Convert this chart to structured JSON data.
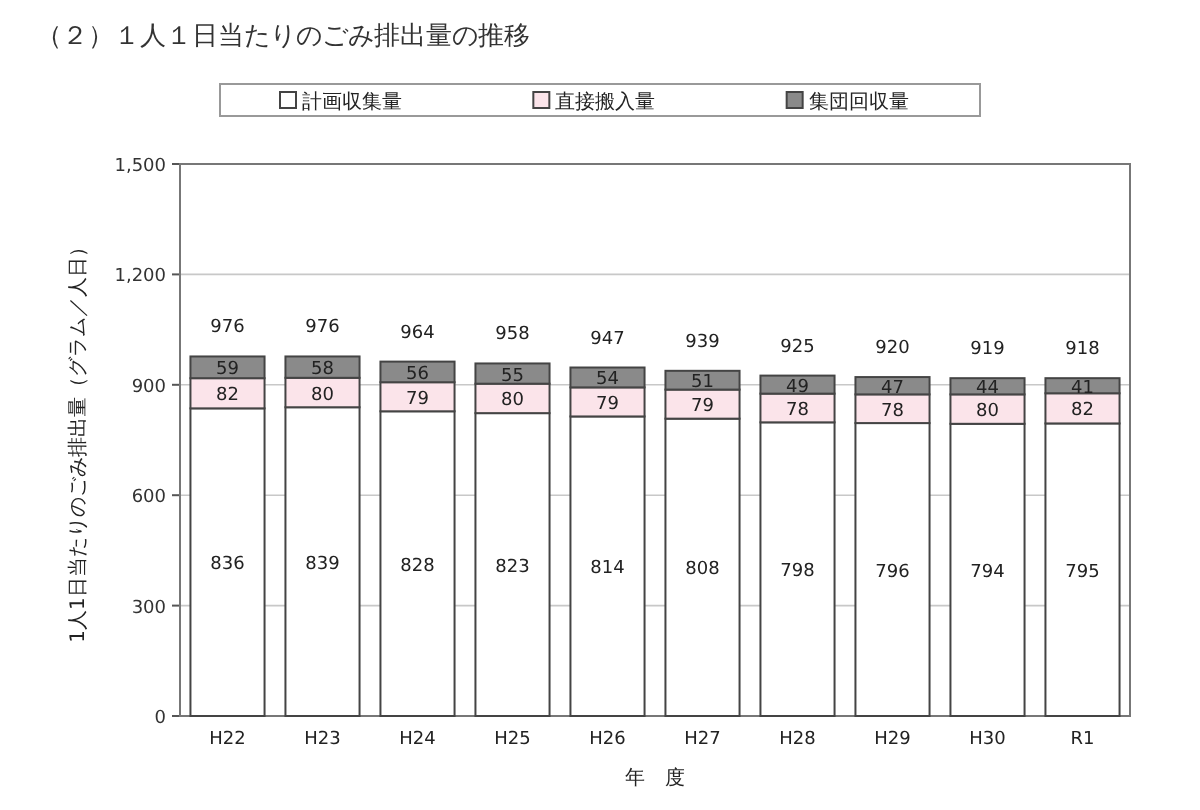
{
  "chart_data": {
    "type": "bar",
    "stacked": true,
    "title": "（２）１人１日当たりのごみ排出量の推移",
    "xlabel": "年　度",
    "ylabel": "1人1日当たりのごみ排出量（グラム／人日）",
    "categories": [
      "H22",
      "H23",
      "H24",
      "H25",
      "H26",
      "H27",
      "H28",
      "H29",
      "H30",
      "R1"
    ],
    "series": [
      {
        "name": "計画収集量",
        "color": "#ffffff",
        "values": [
          836,
          839,
          828,
          823,
          814,
          808,
          798,
          796,
          794,
          795
        ]
      },
      {
        "name": "直接搬入量",
        "color": "#fbe4ea",
        "values": [
          82,
          80,
          79,
          80,
          79,
          79,
          78,
          78,
          80,
          82
        ]
      },
      {
        "name": "集団回収量",
        "color": "#8a8a8a",
        "values": [
          59,
          58,
          56,
          55,
          54,
          51,
          49,
          47,
          44,
          41
        ]
      }
    ],
    "totals": [
      "976",
      "976",
      "964",
      "958",
      "947",
      "939",
      "925",
      "920",
      "919",
      "918"
    ],
    "data_labels": true,
    "ylim": [
      0,
      1500
    ],
    "yticks": [
      0,
      300,
      600,
      900,
      {
        "value": 1200,
        "label": "1,200"
      },
      {
        "value": 1500,
        "label": "1,500"
      }
    ],
    "grid": "y",
    "legend": "top"
  }
}
